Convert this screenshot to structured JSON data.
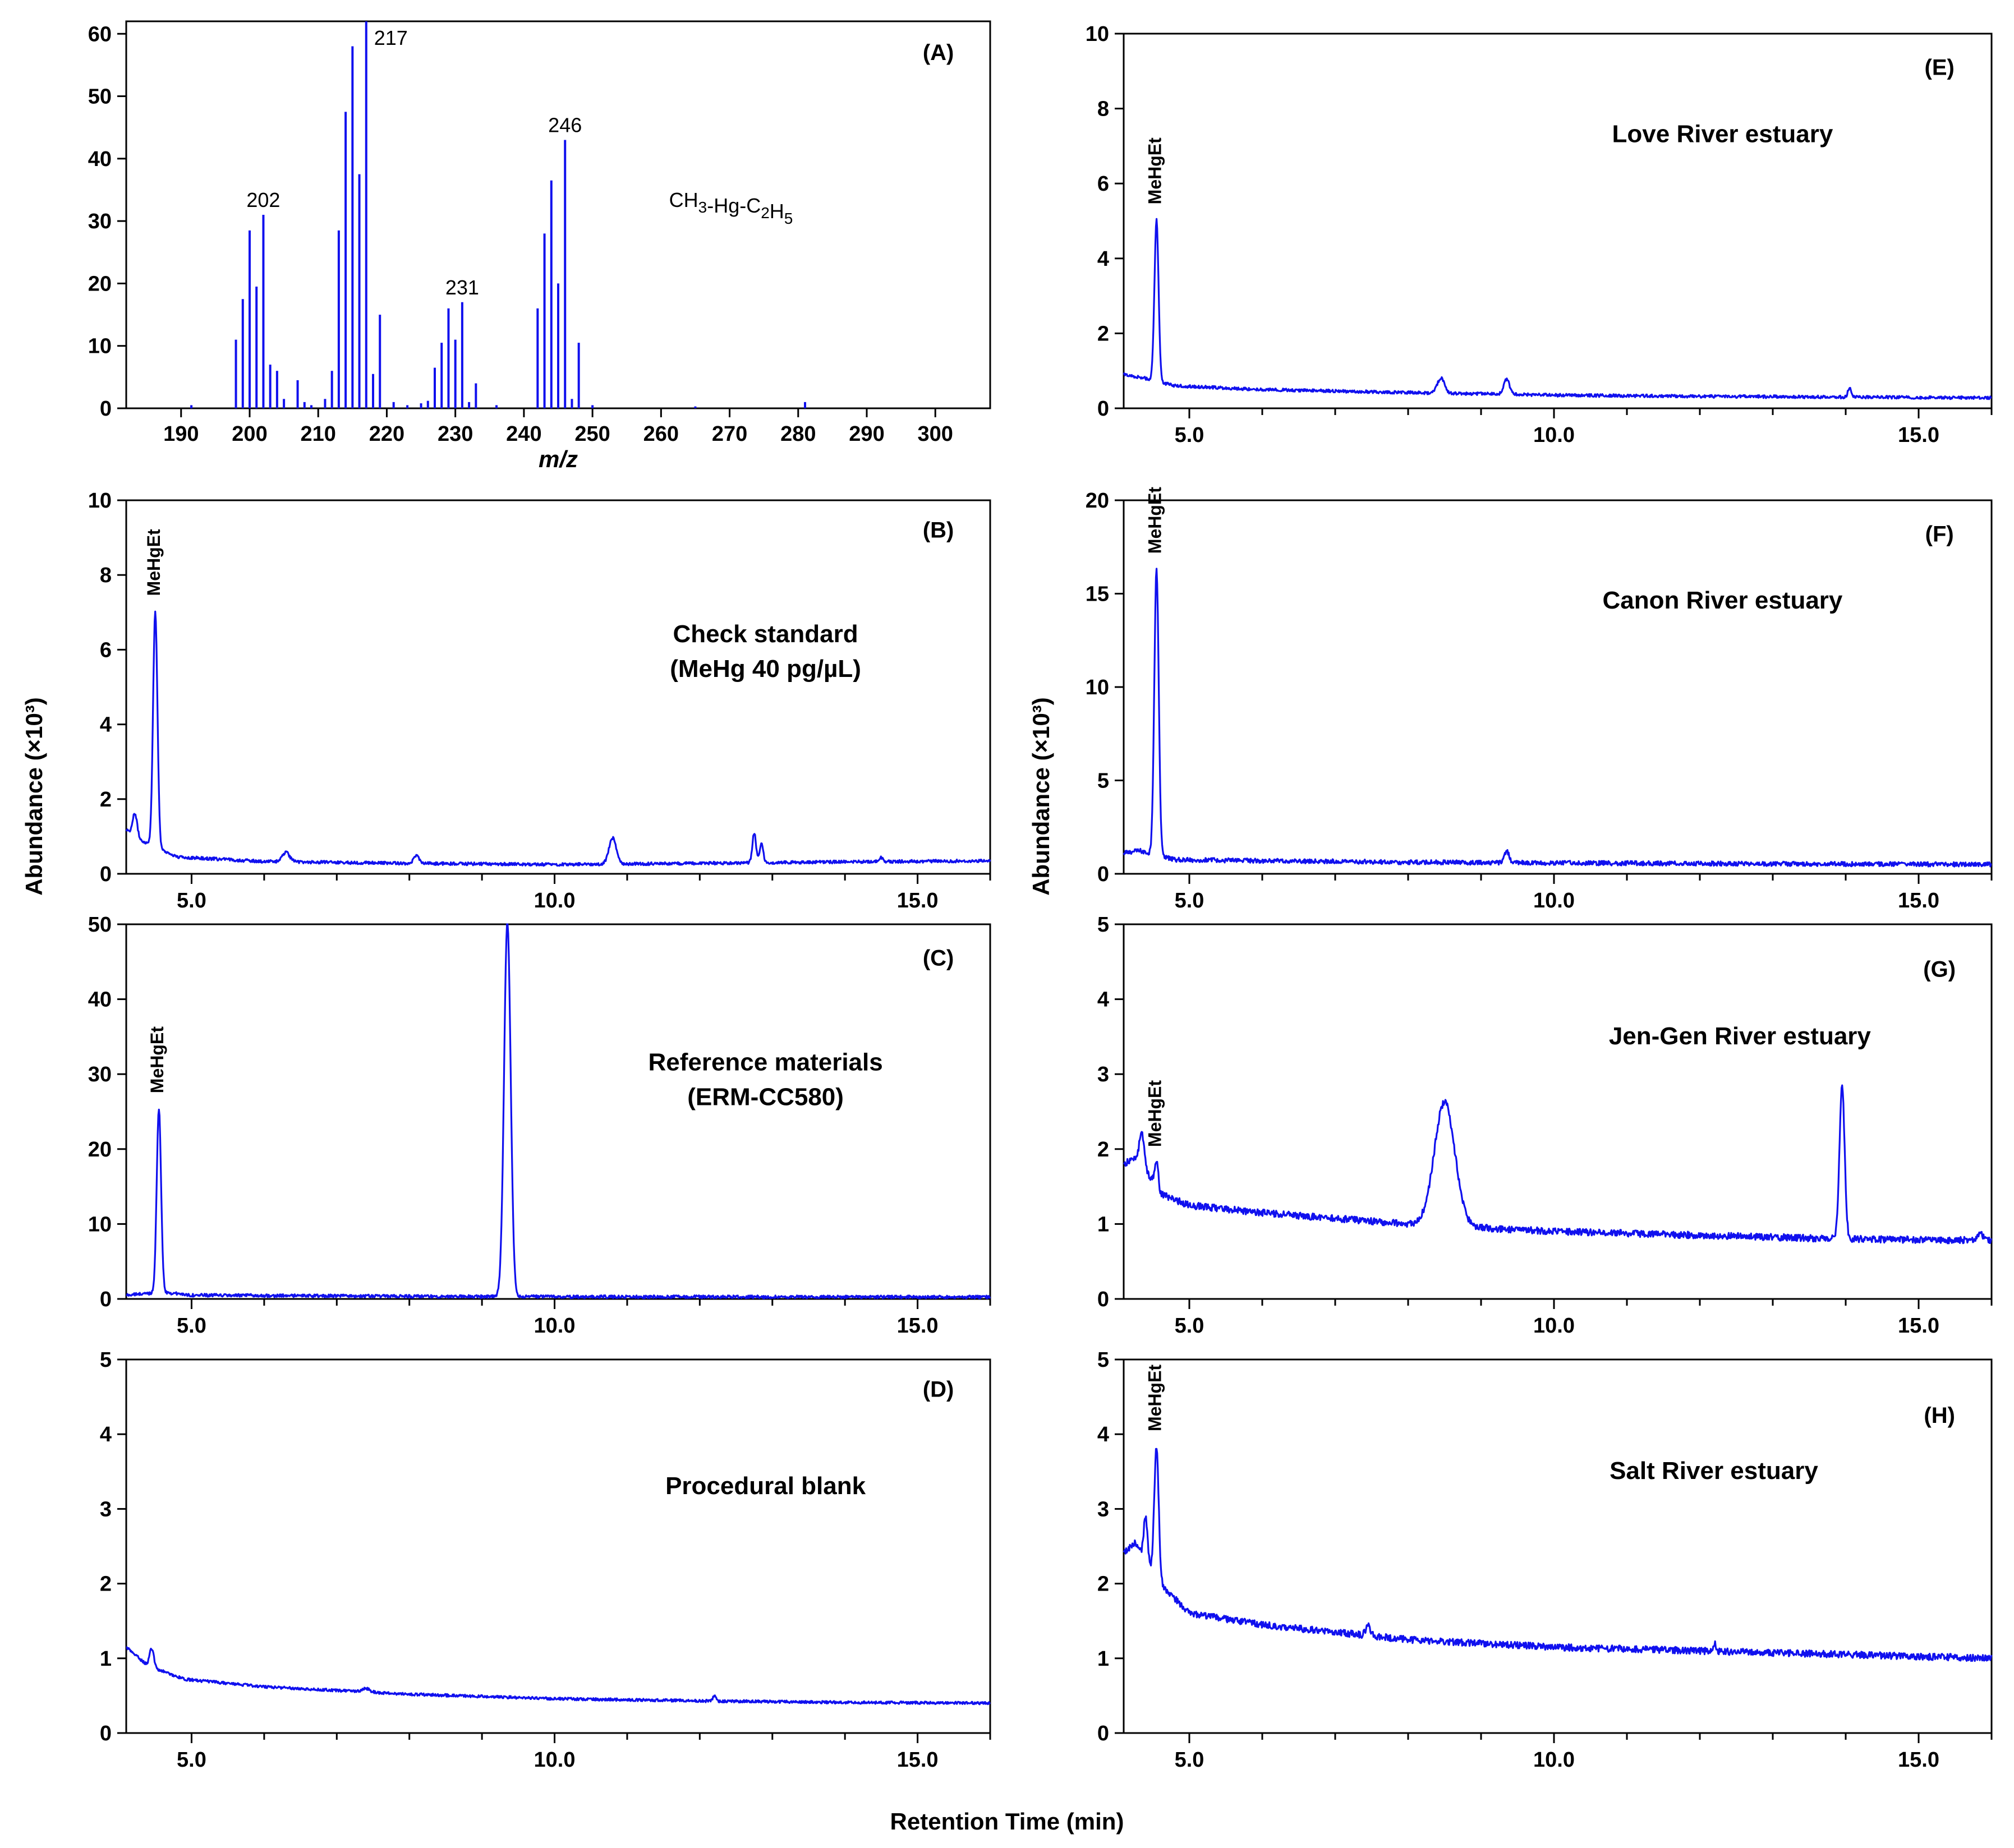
{
  "figure": {
    "y_axis_title_left": "Abundance (×10³)",
    "y_axis_title_right": "Abundance (×10³)",
    "x_axis_title": "Retention Time (min)",
    "trace_color": "#1010ee"
  },
  "chart_data": [
    {
      "id": "A",
      "type": "bar",
      "panel_label": "(A)",
      "compound_label": "CH3-Hg-C2H5",
      "xlabel": "m/z",
      "ylabel": "",
      "xlim": [
        182,
        308
      ],
      "ylim": [
        0,
        62
      ],
      "xticks": [
        190,
        200,
        210,
        220,
        230,
        240,
        250,
        260,
        270,
        280,
        290,
        300
      ],
      "yticks": [
        0,
        10,
        20,
        30,
        40,
        50,
        60
      ],
      "mz": [
        191.5,
        198,
        199,
        200,
        201,
        202,
        203,
        204,
        205,
        207,
        208,
        209,
        211,
        212,
        213,
        214,
        215,
        216,
        217,
        218,
        219,
        221,
        223,
        225,
        226,
        227,
        228,
        229,
        230,
        231,
        232,
        233,
        236,
        242,
        243,
        244,
        245,
        246,
        247,
        248,
        250,
        265,
        281
      ],
      "abundance": [
        0.5,
        11,
        17.5,
        28.5,
        19.5,
        31,
        7,
        6,
        1.5,
        4.5,
        1,
        0.5,
        1.5,
        6,
        28.5,
        47.5,
        58,
        37.5,
        62,
        5.5,
        15,
        1,
        0.5,
        0.8,
        1.2,
        6.5,
        10.5,
        16,
        11,
        17,
        1,
        4,
        0.5,
        16,
        28,
        36.5,
        20,
        43,
        1.5,
        10.5,
        0.5,
        0.3,
        1
      ],
      "labels": [
        {
          "mz": 202,
          "text": "202"
        },
        {
          "mz": 217,
          "text": "217"
        },
        {
          "mz": 231,
          "text": "231"
        },
        {
          "mz": 246,
          "text": "246"
        }
      ]
    },
    {
      "id": "B",
      "type": "line",
      "panel_label": "(B)",
      "title_lines": [
        "Check standard",
        "(MeHg 40 pg/µL)"
      ],
      "peak_name": "MeHgEt",
      "xlim": [
        4.1,
        16
      ],
      "ylim": [
        0,
        10
      ],
      "xticks_labeled": [
        5.0,
        10.0,
        15.0
      ],
      "yticks": [
        0,
        2,
        4,
        6,
        8,
        10
      ],
      "baseline": [
        [
          4.1,
          1.2
        ],
        [
          4.3,
          0.9
        ],
        [
          4.8,
          0.45
        ],
        [
          6,
          0.33
        ],
        [
          8,
          0.28
        ],
        [
          10,
          0.25
        ],
        [
          12,
          0.28
        ],
        [
          14,
          0.32
        ],
        [
          16,
          0.35
        ]
      ],
      "peaks": [
        [
          4.5,
          6.3,
          0.03
        ],
        [
          4.22,
          0.6,
          0.03
        ],
        [
          6.3,
          0.25,
          0.05
        ],
        [
          8.1,
          0.2,
          0.04
        ],
        [
          10.8,
          0.7,
          0.05
        ],
        [
          12.75,
          0.8,
          0.025
        ],
        [
          12.85,
          0.5,
          0.025
        ],
        [
          14.5,
          0.1,
          0.02
        ]
      ],
      "noise": 0.02
    },
    {
      "id": "C",
      "type": "line",
      "panel_label": "(C)",
      "title_lines": [
        "Reference materials",
        "(ERM-CC580)"
      ],
      "peak_name": "MeHgEt",
      "xlim": [
        4.1,
        16
      ],
      "ylim": [
        0,
        50
      ],
      "xticks_labeled": [
        5.0,
        10.0,
        15.0
      ],
      "yticks": [
        0,
        10,
        20,
        30,
        40,
        50
      ],
      "baseline": [
        [
          4.1,
          0.5
        ],
        [
          4.6,
          0.9
        ],
        [
          5,
          0.5
        ],
        [
          8,
          0.35
        ],
        [
          10,
          0.3
        ],
        [
          16,
          0.25
        ]
      ],
      "peaks": [
        [
          4.55,
          24.5,
          0.03
        ],
        [
          9.35,
          50,
          0.045
        ]
      ],
      "noise": 0.02
    },
    {
      "id": "D",
      "type": "line",
      "panel_label": "(D)",
      "title_lines": [
        "Procedural blank"
      ],
      "peak_name": "",
      "xlim": [
        4.1,
        16
      ],
      "ylim": [
        0,
        5
      ],
      "xticks_labeled": [
        5.0,
        10.0,
        15.0
      ],
      "yticks": [
        0,
        1,
        2,
        3,
        4,
        5
      ],
      "baseline": [
        [
          4.1,
          1.15
        ],
        [
          4.4,
          0.9
        ],
        [
          4.9,
          0.72
        ],
        [
          6,
          0.62
        ],
        [
          8,
          0.52
        ],
        [
          10,
          0.46
        ],
        [
          12,
          0.43
        ],
        [
          14,
          0.41
        ],
        [
          16,
          0.4
        ]
      ],
      "peaks": [
        [
          4.45,
          0.25,
          0.03
        ],
        [
          7.4,
          0.05,
          0.05
        ],
        [
          12.2,
          0.08,
          0.02
        ]
      ],
      "noise": 0.018
    },
    {
      "id": "E",
      "type": "line",
      "panel_label": "(E)",
      "title_lines": [
        "Love River estuary"
      ],
      "peak_name": "MeHgEt",
      "xlim": [
        4.1,
        16
      ],
      "ylim": [
        0,
        10
      ],
      "xticks_labeled": [
        5.0,
        10.0,
        15.0
      ],
      "yticks": [
        0,
        2,
        4,
        6,
        8,
        10
      ],
      "baseline": [
        [
          4.1,
          0.9
        ],
        [
          4.4,
          0.8
        ],
        [
          4.8,
          0.6
        ],
        [
          6,
          0.5
        ],
        [
          8,
          0.42
        ],
        [
          10,
          0.35
        ],
        [
          12,
          0.32
        ],
        [
          14,
          0.3
        ],
        [
          16,
          0.28
        ]
      ],
      "peaks": [
        [
          4.55,
          4.3,
          0.028
        ],
        [
          8.45,
          0.4,
          0.05
        ],
        [
          9.35,
          0.4,
          0.04
        ],
        [
          14.05,
          0.25,
          0.02
        ]
      ],
      "noise": 0.02
    },
    {
      "id": "F",
      "type": "line",
      "panel_label": "(F)",
      "title_lines": [
        "Canon River estuary"
      ],
      "peak_name": "MeHgEt",
      "xlim": [
        4.1,
        16
      ],
      "ylim": [
        0,
        20
      ],
      "xticks_labeled": [
        5.0,
        10.0,
        15.0
      ],
      "yticks": [
        0,
        5,
        10,
        15,
        20
      ],
      "baseline": [
        [
          4.1,
          1.1
        ],
        [
          4.3,
          1.25
        ],
        [
          4.8,
          0.75
        ],
        [
          6,
          0.7
        ],
        [
          8,
          0.62
        ],
        [
          10,
          0.58
        ],
        [
          12,
          0.55
        ],
        [
          14,
          0.52
        ],
        [
          16,
          0.5
        ]
      ],
      "peaks": [
        [
          4.55,
          15.3,
          0.03
        ],
        [
          9.35,
          0.6,
          0.035
        ]
      ],
      "noise": 0.03
    },
    {
      "id": "G",
      "type": "line",
      "panel_label": "(G)",
      "title_lines": [
        "Jen-Gen River estuary"
      ],
      "peak_name": "MeHgEt",
      "xlim": [
        4.1,
        16
      ],
      "ylim": [
        0,
        5
      ],
      "xticks_labeled": [
        5.0,
        10.0,
        15.0
      ],
      "yticks": [
        0,
        1,
        2,
        3,
        4,
        5
      ],
      "baseline": [
        [
          4.1,
          1.8
        ],
        [
          4.3,
          1.9
        ],
        [
          4.6,
          1.4
        ],
        [
          5,
          1.25
        ],
        [
          6,
          1.15
        ],
        [
          8,
          1.0
        ],
        [
          10,
          0.9
        ],
        [
          12,
          0.85
        ],
        [
          14,
          0.8
        ],
        [
          16,
          0.78
        ]
      ],
      "peaks": [
        [
          4.35,
          0.4,
          0.03
        ],
        [
          4.55,
          0.35,
          0.025
        ],
        [
          8.5,
          1.65,
          0.14
        ],
        [
          13.95,
          2.05,
          0.035
        ],
        [
          15.85,
          0.1,
          0.03
        ]
      ],
      "noise": 0.045
    },
    {
      "id": "H",
      "type": "line",
      "panel_label": "(H)",
      "title_lines": [
        "Salt River estuary"
      ],
      "peak_name": "MeHgEt",
      "xlim": [
        4.1,
        16
      ],
      "ylim": [
        0,
        5
      ],
      "xticks_labeled": [
        5.0,
        10.0,
        15.0
      ],
      "yticks": [
        0,
        1,
        2,
        3,
        4,
        5
      ],
      "baseline": [
        [
          4.1,
          2.4
        ],
        [
          4.25,
          2.55
        ],
        [
          4.6,
          2.0
        ],
        [
          5,
          1.6
        ],
        [
          6,
          1.45
        ],
        [
          8,
          1.25
        ],
        [
          10,
          1.15
        ],
        [
          12,
          1.1
        ],
        [
          14,
          1.05
        ],
        [
          16,
          1.0
        ]
      ],
      "peaks": [
        [
          4.4,
          0.6,
          0.025
        ],
        [
          4.55,
          1.75,
          0.03
        ],
        [
          7.45,
          0.15,
          0.03
        ],
        [
          12.2,
          0.12,
          0.02
        ]
      ],
      "noise": 0.045
    }
  ]
}
